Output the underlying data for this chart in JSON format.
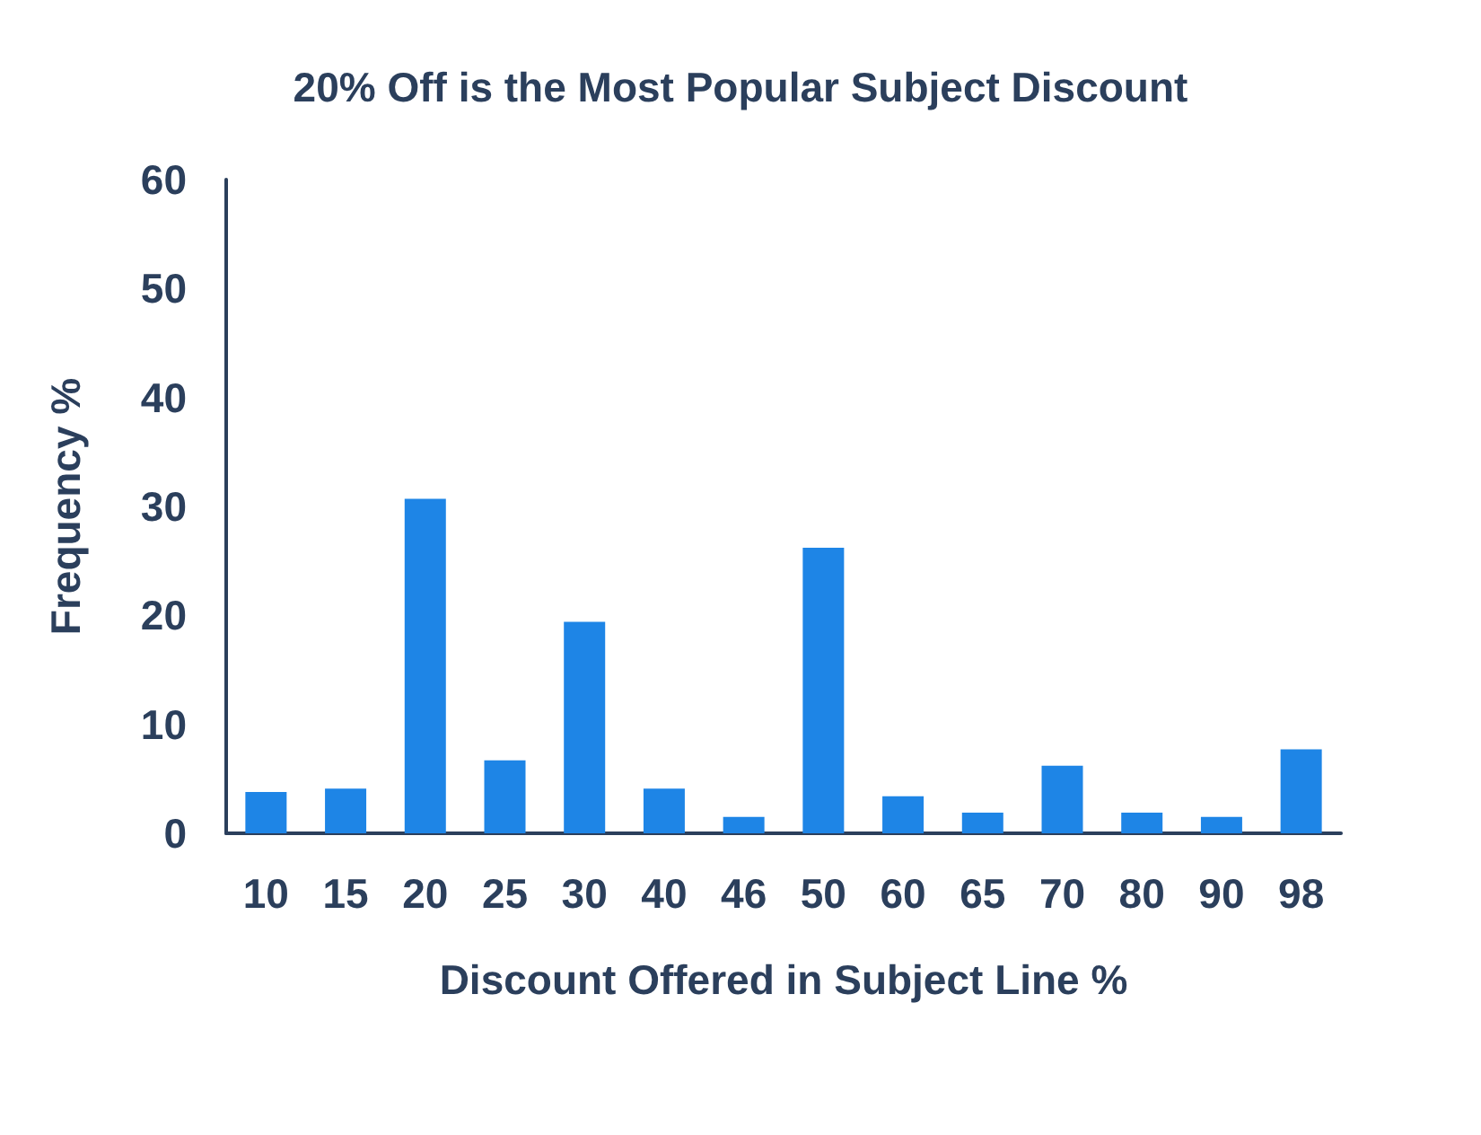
{
  "chart_data": {
    "type": "bar",
    "title": "20% Off is the Most Popular Subject Discount",
    "xlabel": "Discount Offered in Subject Line %",
    "ylabel": "Frequency %",
    "categories": [
      "10",
      "15",
      "20",
      "25",
      "30",
      "40",
      "46",
      "50",
      "60",
      "65",
      "70",
      "80",
      "90",
      "98"
    ],
    "values": [
      3.8,
      4.1,
      30.7,
      6.7,
      19.4,
      4.1,
      1.5,
      26.2,
      3.4,
      1.9,
      6.2,
      1.9,
      1.5,
      7.7
    ],
    "color": "#1e85e6",
    "ylim": [
      0,
      60
    ],
    "yticks": [
      0,
      10,
      20,
      30,
      40,
      50,
      60
    ],
    "grid": false
  }
}
